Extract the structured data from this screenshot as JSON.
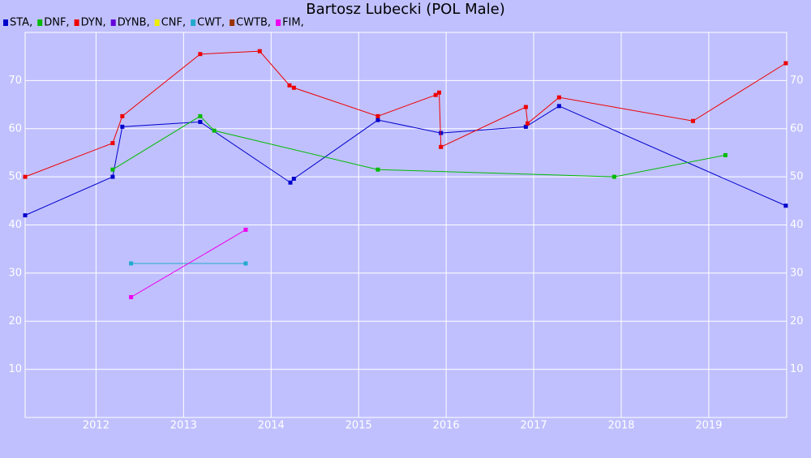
{
  "chart_data": {
    "type": "line",
    "title": "Bartosz Lubecki (POL Male)",
    "xlim": [
      2011.19,
      2019.89
    ],
    "xticks": [
      2012,
      2013,
      2014,
      2015,
      2016,
      2017,
      2018,
      2019
    ],
    "ylim": [
      0,
      80
    ],
    "yticks": [
      10,
      20,
      30,
      40,
      50,
      60,
      70
    ],
    "grid": true,
    "series": [
      {
        "name": "STA,",
        "color": "#0000cc",
        "x": [
          2011.19,
          2012.19,
          2012.3,
          2013.19,
          2014.22,
          2014.26,
          2015.22,
          2015.94,
          2016.91,
          2017.29,
          2019.88
        ],
        "values": [
          42,
          50,
          60.4,
          61.4,
          48.8,
          49.6,
          61.8,
          59.1,
          60.4,
          64.7,
          44
        ]
      },
      {
        "name": "DNF,",
        "color": "#00bb00",
        "x": [
          2012.19,
          2013.19,
          2013.35,
          2015.22,
          2017.92,
          2019.19
        ],
        "values": [
          51.5,
          62.6,
          59.6,
          51.5,
          50,
          54.5
        ]
      },
      {
        "name": "DYN,",
        "color": "#ee0000",
        "x": [
          2011.19,
          2012.19,
          2012.3,
          2013.19,
          2013.87,
          2014.21,
          2014.26,
          2015.22,
          2015.88,
          2015.92,
          2015.94,
          2016.91,
          2016.93,
          2017.29,
          2018.82,
          2019.88
        ],
        "values": [
          50,
          57,
          62.6,
          75.5,
          76.1,
          69,
          68.5,
          62.6,
          67,
          67.5,
          56.2,
          64.5,
          61.1,
          66.5,
          61.6,
          73.6
        ]
      },
      {
        "name": "DYNB,",
        "color": "#6600dd",
        "x": [],
        "values": []
      },
      {
        "name": "CNF,",
        "color": "#eeee00",
        "x": [],
        "values": []
      },
      {
        "name": "CWT,",
        "color": "#22aacc",
        "x": [
          2012.4,
          2013.71
        ],
        "values": [
          32,
          32
        ]
      },
      {
        "name": "CWTB,",
        "color": "#993300",
        "x": [],
        "values": []
      },
      {
        "name": "FIM,",
        "color": "#ee00ee",
        "x": [
          2012.4,
          2013.71
        ],
        "values": [
          25,
          39
        ]
      }
    ]
  }
}
